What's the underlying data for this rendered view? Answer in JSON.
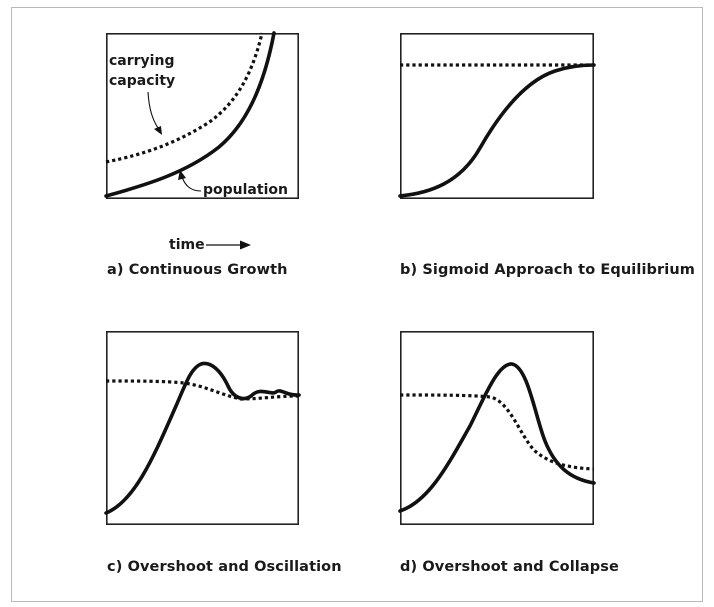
{
  "panels": {
    "a": {
      "title": "a) Continuous Growth",
      "labels": {
        "carrying_capacity_line1": "carrying",
        "carrying_capacity_line2": "capacity",
        "population": "population",
        "time": "time"
      }
    },
    "b": {
      "title": "b) Sigmoid Approach to Equilibrium"
    },
    "c": {
      "title": "c) Overshoot and Oscillation"
    },
    "d": {
      "title": "d) Overshoot and Collapse"
    }
  }
}
